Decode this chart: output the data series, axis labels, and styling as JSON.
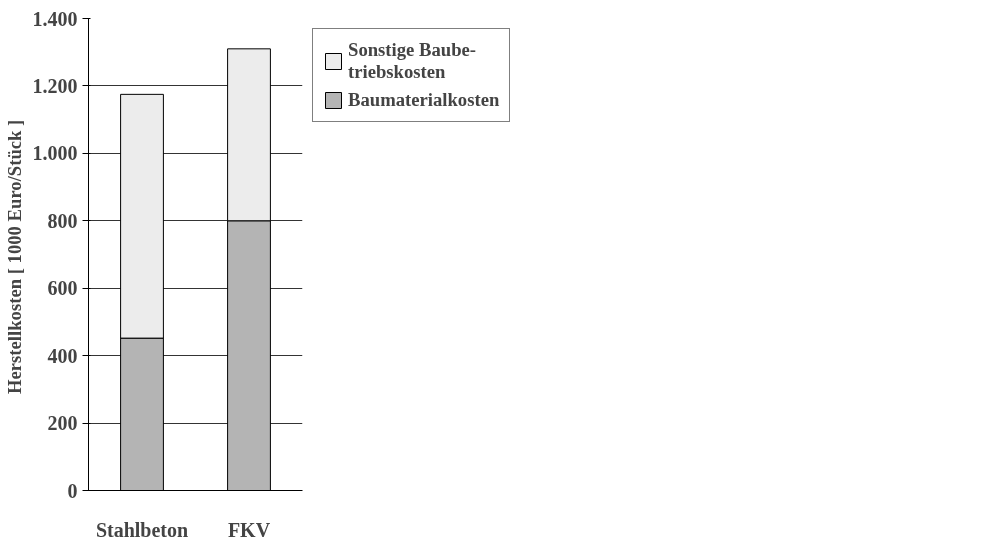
{
  "chart_data": {
    "type": "bar",
    "stacked": true,
    "ylabel": "Herstellkosten  [ 1000 Euro/Stück ]",
    "categories": [
      "Stahlbeton",
      "FKV"
    ],
    "series": [
      {
        "name": "Baumaterialkosten",
        "color": "#b4b4b4",
        "values": [
          452,
          800
        ]
      },
      {
        "name": "Sonstige Baube-\ntriebskosten",
        "color": "#ececec",
        "values": [
          723,
          510
        ]
      }
    ],
    "ylim": [
      0,
      1400
    ],
    "yticks": [
      0,
      200,
      400,
      600,
      800,
      {
        "value": 1000,
        "label": "1.000"
      },
      {
        "value": 1200,
        "label": "1.200"
      },
      {
        "value": 1400,
        "label": "1.400"
      }
    ],
    "grid": "y",
    "legend": "top right"
  }
}
